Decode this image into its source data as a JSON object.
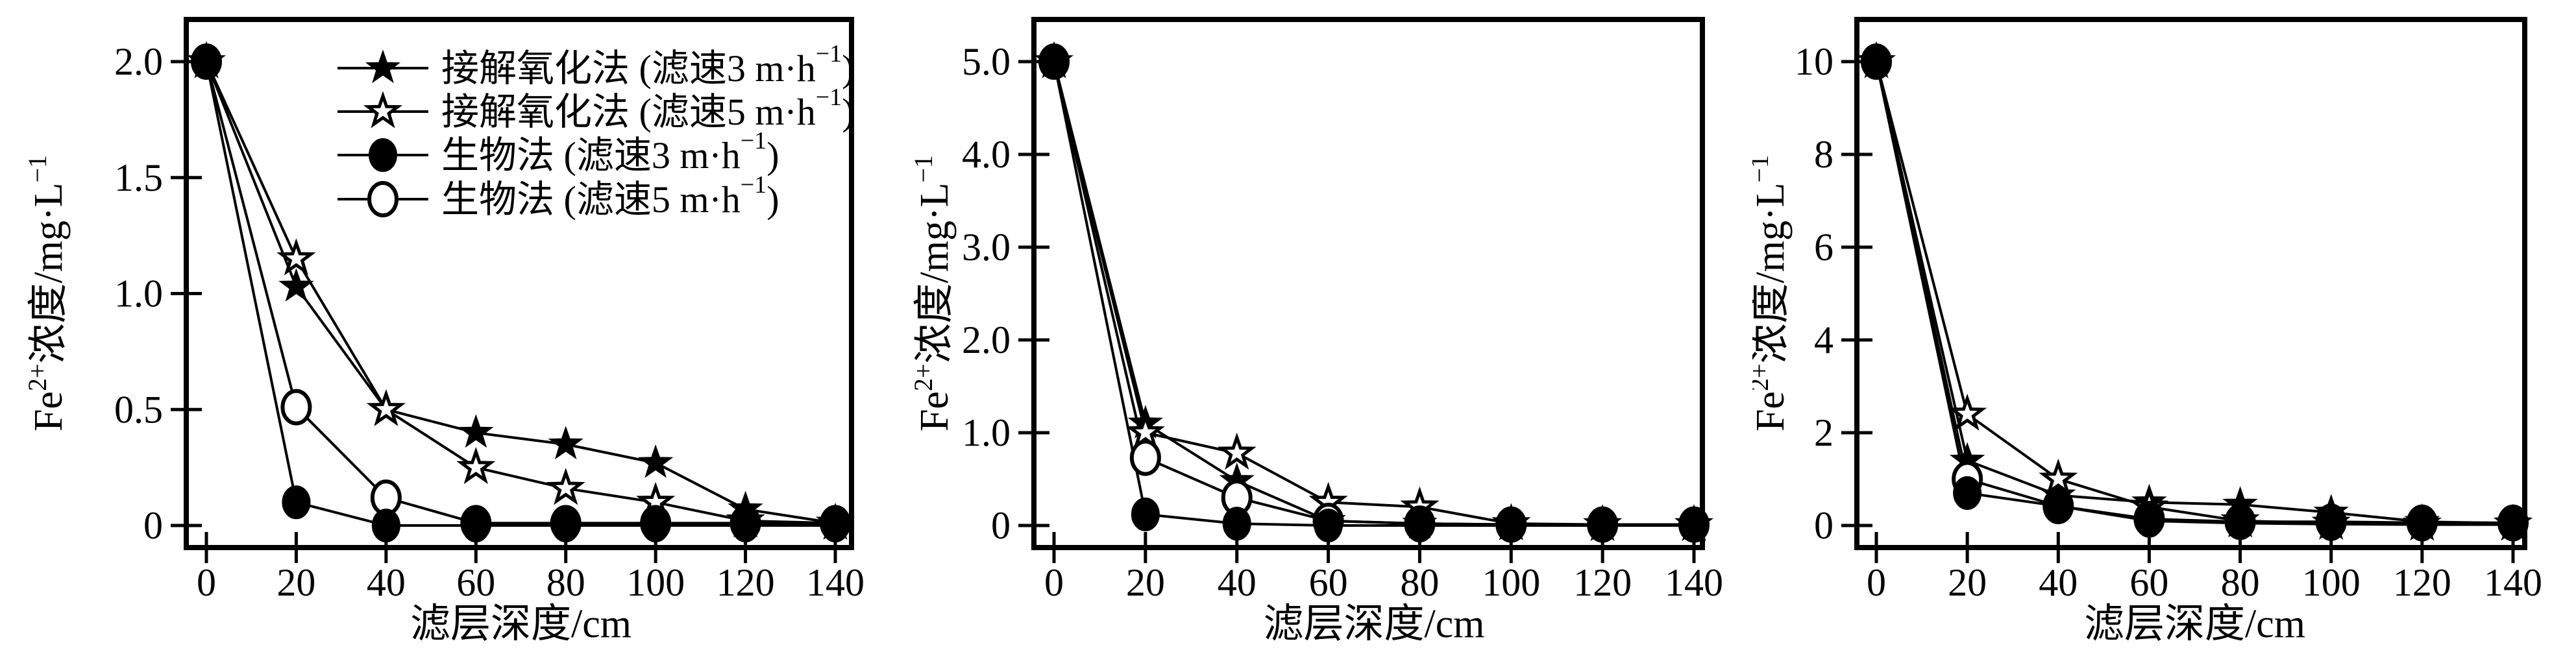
{
  "figure": {
    "background": "#ffffff",
    "ink_color": "#000000",
    "xlabel": "滤层深度/cm",
    "ylabel_parts": {
      "base1": "Fe",
      "sup1": "2+",
      "base2": "浓度/mg·L",
      "sup2": "−1"
    },
    "x_tick_labels": [
      "0",
      "20",
      "40",
      "60",
      "80",
      "100",
      "120",
      "140"
    ]
  },
  "legend": {
    "position": "upper-left-inside-first-panel",
    "entries": [
      {
        "marker": "star-filled",
        "prefix": "接解氧化法 (滤速3 m·h",
        "sup": "−1",
        "suffix": ")"
      },
      {
        "marker": "star-open",
        "prefix": "接解氧化法 (滤速5 m·h",
        "sup": "−1",
        "suffix": ")"
      },
      {
        "marker": "circle-filled",
        "prefix": "生物法 (滤速3 m·h",
        "sup": "−1",
        "suffix": ")"
      },
      {
        "marker": "circle-open",
        "prefix": "生物法 (滤速5 m·h",
        "sup": "−1",
        "suffix": ")"
      }
    ]
  },
  "chart_data": [
    {
      "type": "line",
      "title": "",
      "xlabel": "滤层深度/cm",
      "ylabel": "Fe2+浓度/mg·L-1",
      "x": [
        0,
        20,
        40,
        60,
        80,
        100,
        120,
        140
      ],
      "xlim": [
        0,
        140
      ],
      "ylim": [
        0,
        2.0
      ],
      "ytick_values": [
        0,
        0.5,
        1.0,
        1.5,
        2.0
      ],
      "ytick_labels": [
        "0",
        "0.5",
        "1.0",
        "1.5",
        "2.0"
      ],
      "grid": false,
      "legend_shown": true,
      "series": [
        {
          "name": "接解氧化法 (滤速3 m·h−1)",
          "marker": "star-filled",
          "values": [
            2.0,
            1.03,
            0.5,
            0.4,
            0.35,
            0.27,
            0.07,
            0.01
          ]
        },
        {
          "name": "接解氧化法 (滤速5 m·h−1)",
          "marker": "star-open",
          "values": [
            2.0,
            1.15,
            0.5,
            0.25,
            0.16,
            0.1,
            0.02,
            0.01
          ]
        },
        {
          "name": "生物法 (滤速3 m·h−1)",
          "marker": "circle-filled",
          "values": [
            2.0,
            0.1,
            0.0,
            0.0,
            0.0,
            0.0,
            0.0,
            0.0
          ]
        },
        {
          "name": "生物法 (滤速5 m·h−1)",
          "marker": "circle-open",
          "values": [
            2.0,
            0.51,
            0.12,
            0.01,
            0.01,
            0.01,
            0.01,
            0.01
          ]
        }
      ]
    },
    {
      "type": "line",
      "title": "",
      "xlabel": "滤层深度/cm",
      "ylabel": "Fe2+浓度/mg·L-1",
      "x": [
        0,
        20,
        40,
        60,
        80,
        100,
        120,
        140
      ],
      "xlim": [
        0,
        140
      ],
      "ylim": [
        0,
        5.0
      ],
      "ytick_values": [
        0,
        1.0,
        2.0,
        3.0,
        4.0,
        5.0
      ],
      "ytick_labels": [
        "0",
        "1.0",
        "2.0",
        "3.0",
        "4.0",
        "5.0"
      ],
      "grid": false,
      "legend_shown": false,
      "series": [
        {
          "name": "接解氧化法 (滤速3 m·h−1)",
          "marker": "star-filled",
          "values": [
            5.0,
            1.1,
            0.48,
            0.05,
            0.02,
            0.01,
            0.01,
            0.01
          ]
        },
        {
          "name": "接解氧化法 (滤速5 m·h−1)",
          "marker": "star-open",
          "values": [
            5.0,
            1.0,
            0.78,
            0.25,
            0.2,
            0.02,
            0.01,
            0.01
          ]
        },
        {
          "name": "生物法 (滤速3 m·h−1)",
          "marker": "circle-filled",
          "values": [
            5.0,
            0.12,
            0.02,
            0.0,
            0.0,
            0.0,
            0.0,
            0.0
          ]
        },
        {
          "name": "生物法 (滤速5 m·h−1)",
          "marker": "circle-open",
          "values": [
            5.0,
            0.73,
            0.3,
            0.05,
            0.02,
            0.01,
            0.01,
            0.01
          ]
        }
      ]
    },
    {
      "type": "line",
      "title": "",
      "xlabel": "滤层深度/cm",
      "ylabel": "Fe2+浓度/mg·L-1",
      "x": [
        0,
        20,
        40,
        60,
        80,
        100,
        120,
        140
      ],
      "xlim": [
        0,
        140
      ],
      "ylim": [
        0,
        10
      ],
      "ytick_values": [
        0,
        2,
        4,
        6,
        8,
        10
      ],
      "ytick_labels": [
        "0",
        "2",
        "4",
        "6",
        "8",
        "10"
      ],
      "grid": false,
      "legend_shown": false,
      "series": [
        {
          "name": "接解氧化法 (滤速3 m·h−1)",
          "marker": "star-filled",
          "values": [
            10.0,
            1.4,
            0.65,
            0.5,
            0.45,
            0.28,
            0.08,
            0.05
          ]
        },
        {
          "name": "接解氧化法 (滤速5 m·h−1)",
          "marker": "star-open",
          "values": [
            10.0,
            2.4,
            1.0,
            0.4,
            0.1,
            0.05,
            0.03,
            0.03
          ]
        },
        {
          "name": "生物法 (滤速3 m·h−1)",
          "marker": "circle-filled",
          "values": [
            10.0,
            0.7,
            0.42,
            0.1,
            0.05,
            0.03,
            0.02,
            0.02
          ]
        },
        {
          "name": "生物法 (滤速5 m·h−1)",
          "marker": "circle-open",
          "values": [
            10.0,
            1.0,
            0.42,
            0.14,
            0.08,
            0.08,
            0.06,
            0.06
          ]
        }
      ]
    }
  ]
}
